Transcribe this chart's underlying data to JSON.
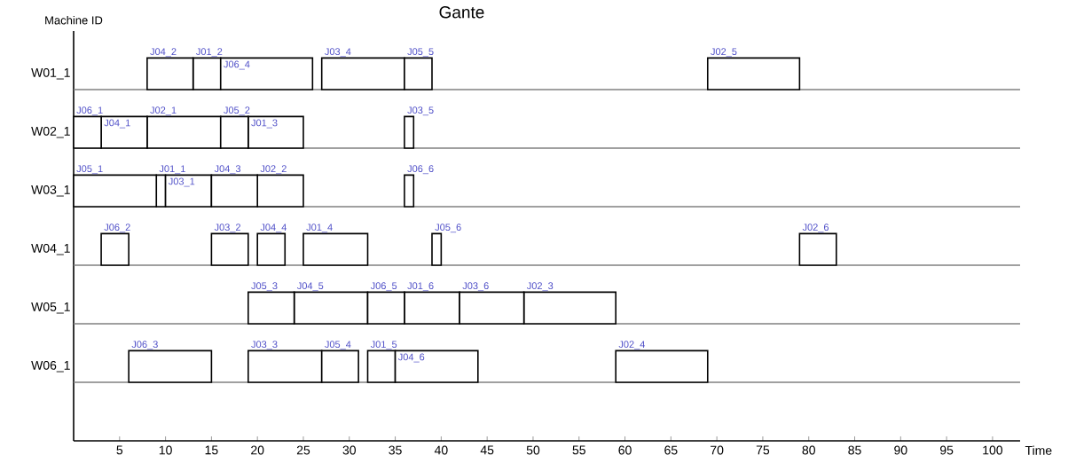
{
  "chart_data": {
    "type": "bar",
    "orientation": "horizontal",
    "title": "Gante",
    "xlabel": "Time",
    "ylabel": "Machine ID",
    "categories": [
      "W01_1",
      "W02_1",
      "W03_1",
      "W04_1",
      "W05_1",
      "W06_1"
    ],
    "series": [
      {
        "color": "#ffffff",
        "base": [
          13,
          19,
          9,
          25,
          36,
          32
        ],
        "values": [
          3,
          6,
          1,
          7,
          6,
          3
        ],
        "value_labels": [
          "J01_2",
          "J01_3",
          "J01_1",
          "J01_4",
          "J01_6",
          "J01_5"
        ]
      },
      {
        "color": "#ffffff",
        "base": [
          69,
          8,
          20,
          79,
          49,
          59
        ],
        "values": [
          10,
          8,
          5,
          4,
          10,
          10
        ],
        "value_labels": [
          "J02_5",
          "J02_1",
          "J02_2",
          "J02_6",
          "J02_3",
          "J02_4"
        ]
      },
      {
        "color": "#ffffff",
        "base": [
          27,
          36,
          10,
          15,
          42,
          19
        ],
        "values": [
          9,
          1,
          5,
          4,
          7,
          8
        ],
        "value_labels": [
          "J03_4",
          "J03_5",
          "J03_1",
          "J03_2",
          "J03_6",
          "J03_3"
        ]
      },
      {
        "color": "#ffffff",
        "base": [
          8,
          3,
          15,
          20,
          24,
          35
        ],
        "values": [
          5,
          5,
          5,
          3,
          8,
          9
        ],
        "value_labels": [
          "J04_2",
          "J04_1",
          "J04_3",
          "J04_4",
          "J04_5",
          "J04_6"
        ]
      },
      {
        "color": "#ffffff",
        "base": [
          36,
          16,
          0,
          39,
          19,
          27
        ],
        "values": [
          3,
          3,
          9,
          1,
          5,
          4
        ],
        "value_labels": [
          "J05_5",
          "J05_2",
          "J05_1",
          "J05_6",
          "J05_3",
          "J05_4"
        ]
      },
      {
        "color": "#ffffff",
        "base": [
          16,
          0,
          36,
          3,
          32,
          6
        ],
        "values": [
          10,
          3,
          1,
          3,
          4,
          9
        ],
        "value_labels": [
          "J06_4",
          "J06_1",
          "J06_6",
          "J06_2",
          "J06_5",
          "J06_3"
        ]
      }
    ],
    "xlim": [
      0,
      103
    ],
    "xticks": [
      5,
      10,
      15,
      20,
      25,
      30,
      35,
      40,
      45,
      50,
      55,
      60,
      65,
      70,
      75,
      80,
      85,
      90,
      95,
      100
    ],
    "grid": "y"
  }
}
